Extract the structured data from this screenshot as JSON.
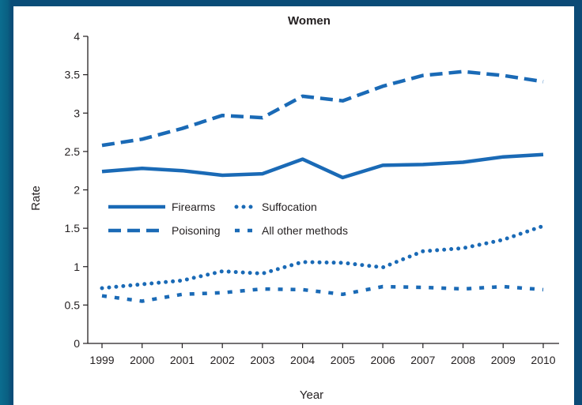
{
  "colors": {
    "series": "#1a6ab6",
    "axis": "#231f20"
  },
  "chart_data": {
    "type": "line",
    "title": "Women",
    "xlabel": "Year",
    "ylabel": "Rate",
    "ylim": [
      0,
      4
    ],
    "yticks": [
      "0",
      "0.5",
      "1",
      "1.5",
      "2",
      "2.5",
      "3",
      "3.5",
      "4"
    ],
    "x": [
      "1999",
      "2000",
      "2001",
      "2002",
      "2003",
      "2004",
      "2005",
      "2006",
      "2007",
      "2008",
      "2009",
      "2010"
    ],
    "grid": false,
    "legend_placement": "center-left",
    "series": [
      {
        "name": "Firearms",
        "style": "solid",
        "values": [
          2.24,
          2.28,
          2.25,
          2.19,
          2.21,
          2.4,
          2.16,
          2.32,
          2.33,
          2.36,
          2.43,
          2.46
        ]
      },
      {
        "name": "Poisoning",
        "style": "dashed",
        "values": [
          2.58,
          2.66,
          2.8,
          2.97,
          2.94,
          3.22,
          3.16,
          3.35,
          3.49,
          3.54,
          3.49,
          3.41
        ]
      },
      {
        "name": "Suffocation",
        "style": "dotted",
        "values": [
          0.72,
          0.77,
          0.82,
          0.94,
          0.91,
          1.06,
          1.05,
          0.99,
          1.2,
          1.24,
          1.35,
          1.53
        ]
      },
      {
        "name": "All other methods",
        "style": "dashed-short",
        "values": [
          0.62,
          0.55,
          0.64,
          0.66,
          0.71,
          0.7,
          0.64,
          0.74,
          0.73,
          0.71,
          0.74,
          0.7
        ]
      }
    ]
  }
}
